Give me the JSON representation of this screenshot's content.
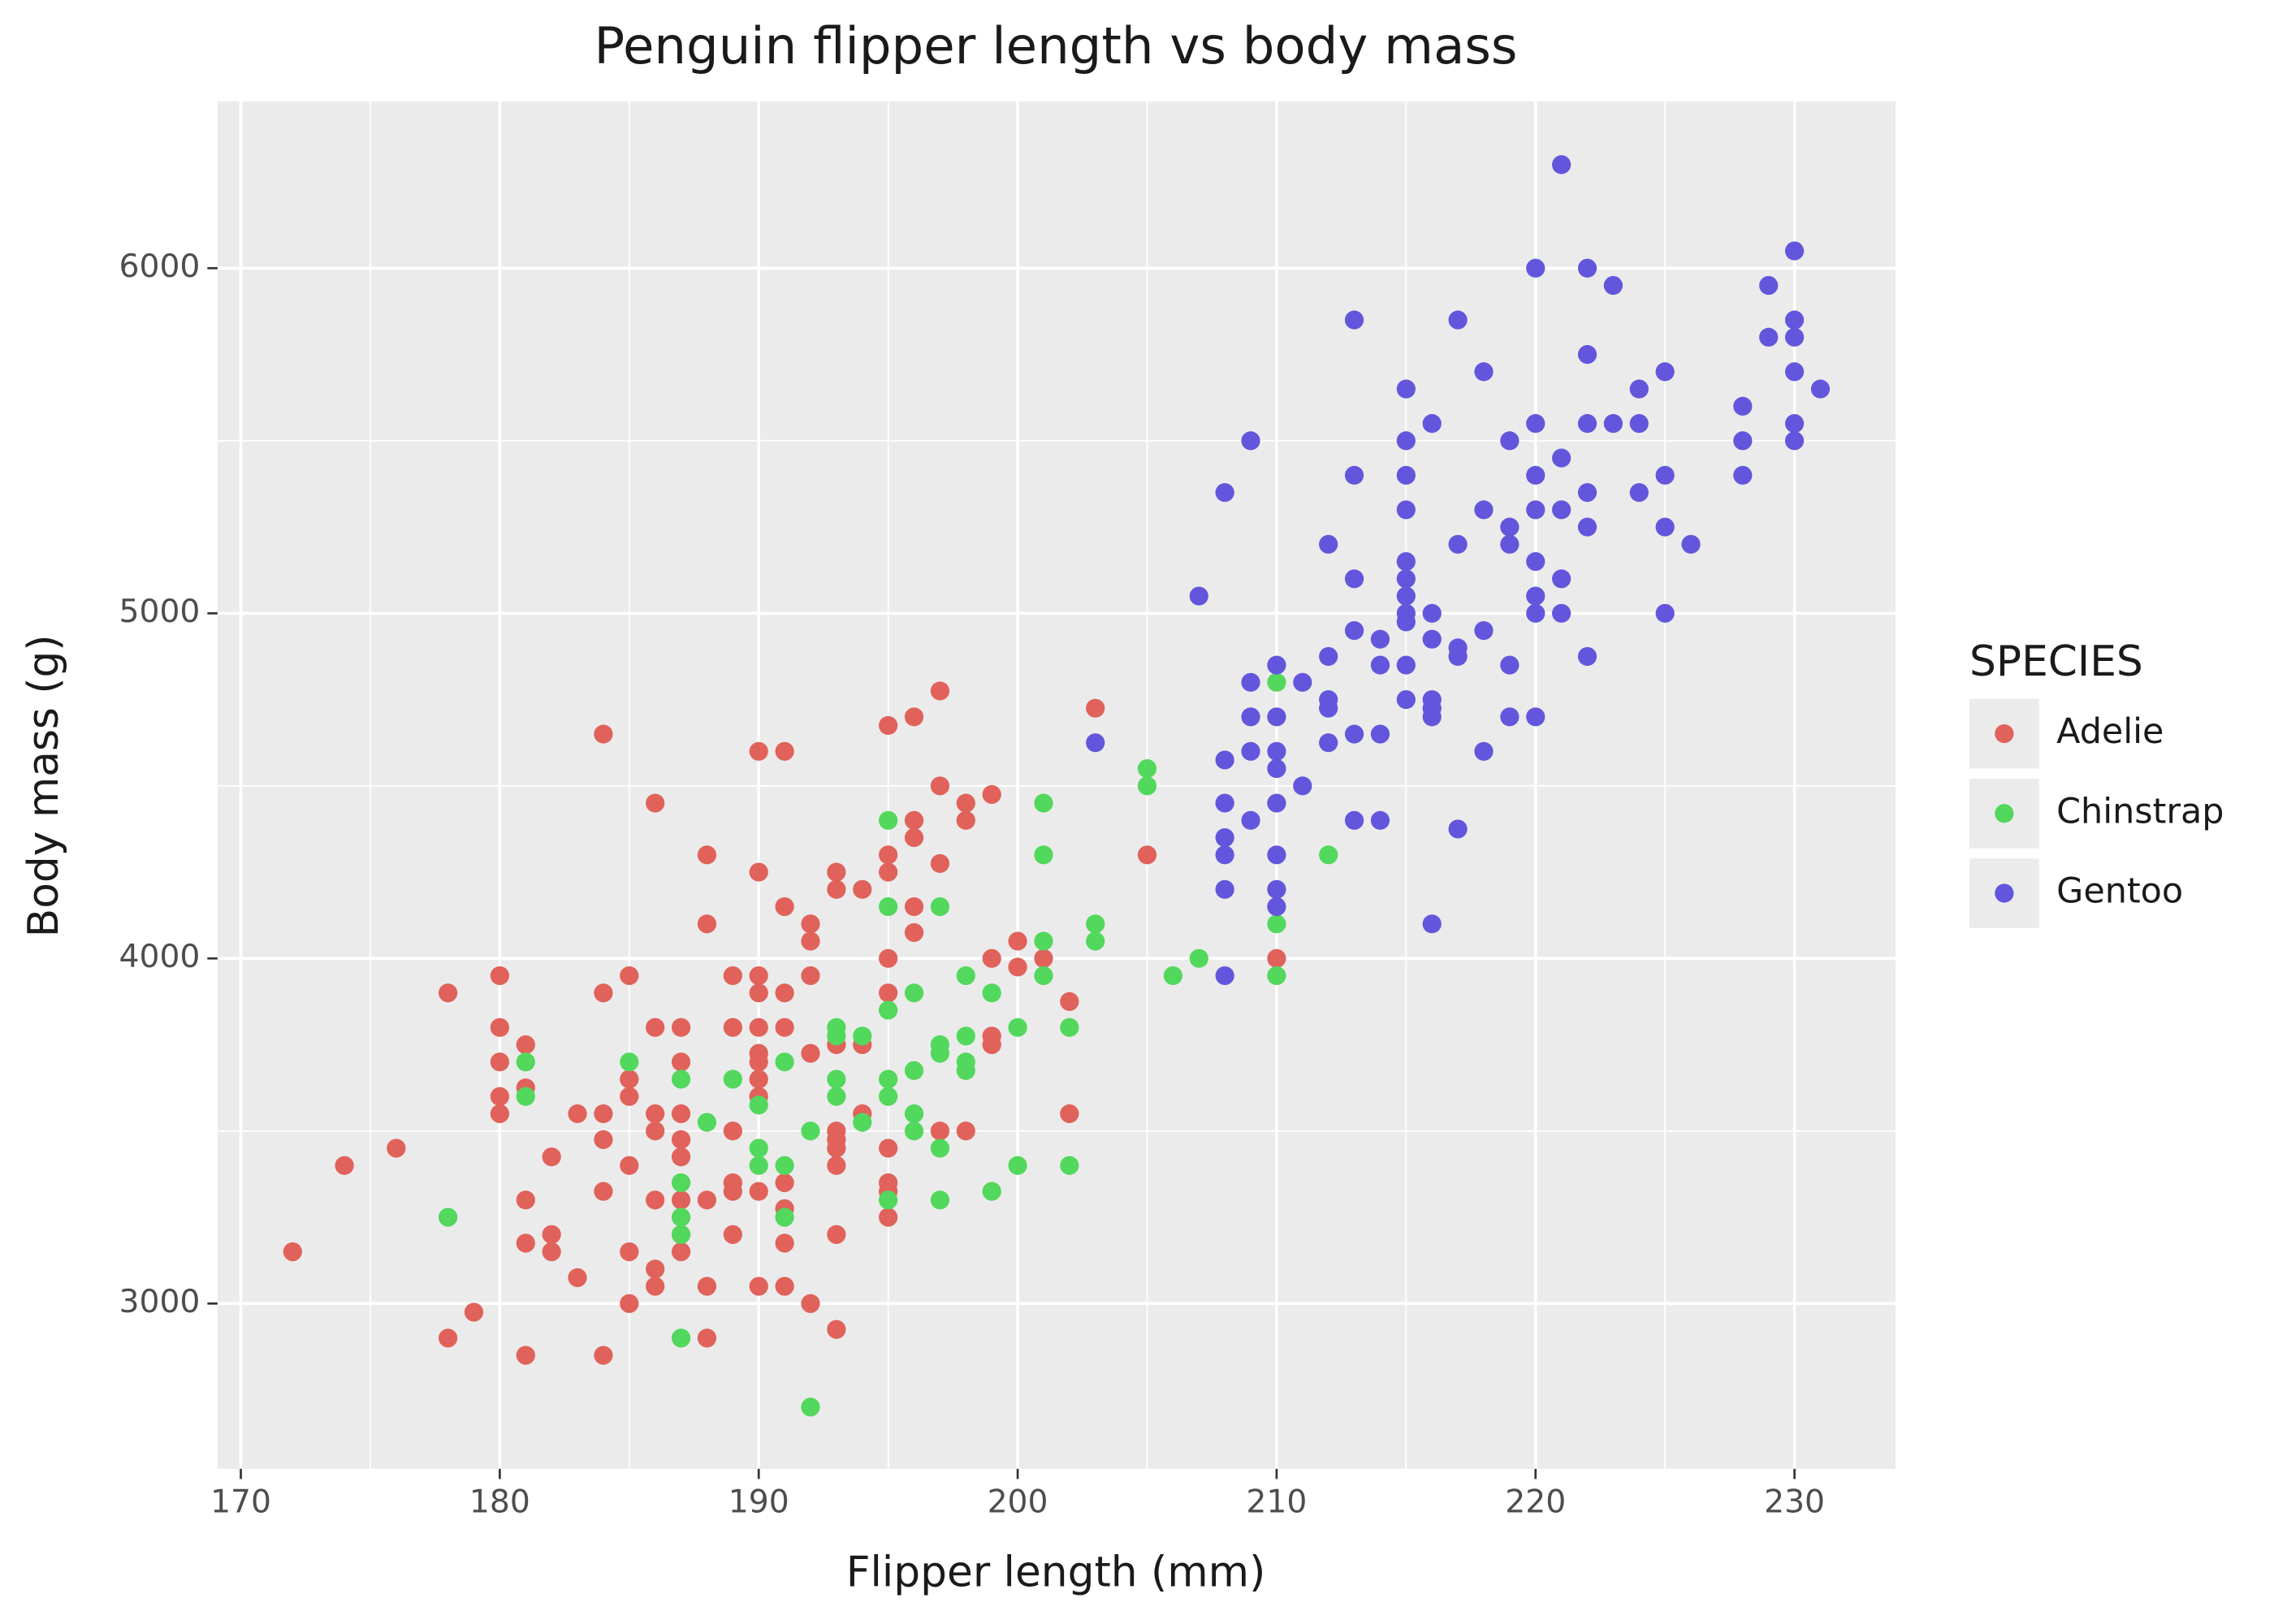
{
  "chart_data": {
    "type": "scatter",
    "title": "Penguin flipper length vs body mass",
    "x_label": "Flipper length (mm)",
    "y_label": "Body mass (g)",
    "legend_title": "SPECIES",
    "legend_position": "right",
    "grid": true,
    "xlim": [
      169.1,
      233.9
    ],
    "ylim": [
      2521,
      6483
    ],
    "xticks": [
      170,
      180,
      190,
      200,
      210,
      220,
      230
    ],
    "yticks": [
      3000,
      4000,
      5000,
      6000
    ],
    "series": [
      {
        "name": "Adelie",
        "color": "#e0625a",
        "x": [
          172,
          174,
          176,
          178,
          178,
          179,
          180,
          180,
          180,
          180,
          180,
          181,
          181,
          181,
          181,
          181,
          182,
          182,
          182,
          183,
          183,
          184,
          184,
          184,
          184,
          184,
          184,
          185,
          185,
          185,
          185,
          185,
          185,
          186,
          186,
          186,
          186,
          186,
          186,
          186,
          187,
          187,
          187,
          187,
          187,
          187,
          187,
          187,
          188,
          188,
          188,
          188,
          188,
          189,
          189,
          189,
          189,
          189,
          189,
          190,
          190,
          190,
          190,
          190,
          190,
          190,
          190,
          190,
          190,
          190,
          191,
          191,
          191,
          191,
          191,
          191,
          191,
          191,
          192,
          192,
          192,
          192,
          192,
          193,
          193,
          193,
          193,
          193,
          193,
          193,
          193,
          193,
          194,
          194,
          194,
          195,
          195,
          195,
          195,
          195,
          195,
          195,
          195,
          195,
          196,
          196,
          196,
          196,
          196,
          197,
          197,
          197,
          197,
          198,
          198,
          198,
          199,
          199,
          199,
          199,
          200,
          200,
          201,
          202,
          202,
          203,
          205,
          210
        ],
        "values": [
          3150,
          3400,
          3450,
          3900,
          2900,
          2975,
          3950,
          3800,
          3700,
          3600,
          3550,
          3750,
          3625,
          3300,
          3175,
          2850,
          3425,
          3200,
          3150,
          3550,
          3075,
          4650,
          3900,
          3550,
          3475,
          3325,
          2850,
          3950,
          3650,
          3600,
          3400,
          3150,
          3000,
          4450,
          3800,
          3550,
          3500,
          3300,
          3100,
          3050,
          3800,
          3700,
          3550,
          3475,
          3425,
          3300,
          3200,
          3150,
          4300,
          4100,
          3300,
          3050,
          2900,
          3950,
          3800,
          3500,
          3350,
          3325,
          3200,
          4600,
          4250,
          3950,
          3900,
          3800,
          3725,
          3700,
          3650,
          3600,
          3325,
          3050,
          4600,
          4150,
          3900,
          3800,
          3350,
          3275,
          3175,
          3050,
          4100,
          4050,
          3950,
          3725,
          3000,
          4250,
          4200,
          3750,
          3500,
          3475,
          3450,
          3400,
          3200,
          2925,
          4200,
          3750,
          3550,
          4675,
          4300,
          4250,
          4000,
          3900,
          3450,
          3350,
          3325,
          3250,
          4700,
          4400,
          4350,
          4150,
          4075,
          4775,
          4500,
          4275,
          3500,
          4450,
          4400,
          3500,
          4475,
          4000,
          3775,
          3750,
          4050,
          3975,
          4000,
          3875,
          3550,
          4725,
          4300,
          4000
        ]
      },
      {
        "name": "Chinstrap",
        "color": "#52d85c",
        "x": [
          178,
          181,
          181,
          185,
          187,
          187,
          187,
          187,
          187,
          188,
          189,
          190,
          190,
          190,
          191,
          191,
          191,
          192,
          192,
          193,
          193,
          193,
          193,
          194,
          194,
          195,
          195,
          195,
          195,
          195,
          195,
          196,
          196,
          196,
          196,
          197,
          197,
          197,
          197,
          197,
          198,
          198,
          198,
          198,
          199,
          199,
          200,
          200,
          201,
          201,
          201,
          201,
          202,
          202,
          203,
          203,
          205,
          205,
          206,
          207,
          210,
          210,
          210,
          212
        ],
        "values": [
          3250,
          3700,
          3600,
          3700,
          3650,
          3350,
          3250,
          3200,
          2900,
          3525,
          3650,
          3575,
          3450,
          3400,
          3700,
          3400,
          3250,
          3500,
          2700,
          3800,
          3775,
          3650,
          3600,
          3775,
          3525,
          4400,
          4150,
          3850,
          3650,
          3600,
          3300,
          3900,
          3675,
          3550,
          3500,
          4150,
          3750,
          3725,
          3450,
          3300,
          3950,
          3775,
          3700,
          3675,
          3900,
          3325,
          3800,
          3400,
          4450,
          4300,
          4050,
          3950,
          3800,
          3400,
          4100,
          4050,
          4550,
          4500,
          3950,
          4000,
          4800,
          4100,
          3950,
          4300
        ]
      },
      {
        "name": "Gentoo",
        "color": "#6356dc",
        "x": [
          203,
          207,
          208,
          208,
          208,
          208,
          208,
          208,
          208,
          209,
          209,
          209,
          209,
          209,
          210,
          210,
          210,
          210,
          210,
          210,
          210,
          210,
          211,
          211,
          212,
          212,
          212,
          212,
          212,
          213,
          213,
          213,
          213,
          213,
          213,
          214,
          214,
          214,
          214,
          215,
          215,
          215,
          215,
          215,
          215,
          215,
          215,
          215,
          215,
          215,
          216,
          216,
          216,
          216,
          216,
          216,
          216,
          217,
          217,
          217,
          217,
          217,
          218,
          218,
          218,
          218,
          219,
          219,
          219,
          219,
          219,
          220,
          220,
          220,
          220,
          220,
          220,
          220,
          220,
          221,
          221,
          221,
          221,
          221,
          222,
          222,
          222,
          222,
          222,
          222,
          223,
          223,
          224,
          224,
          224,
          225,
          225,
          225,
          225,
          226,
          228,
          228,
          228,
          229,
          229,
          230,
          230,
          230,
          230,
          230,
          230,
          231
        ],
        "values": [
          4625,
          5050,
          5350,
          4575,
          4450,
          4350,
          4300,
          4200,
          3950,
          5500,
          4800,
          4700,
          4600,
          4400,
          4850,
          4700,
          4600,
          4550,
          4450,
          4300,
          4200,
          4150,
          4800,
          4500,
          5200,
          4875,
          4750,
          4725,
          4625,
          5850,
          5400,
          5100,
          4950,
          4650,
          4400,
          4925,
          4850,
          4650,
          4400,
          5650,
          5500,
          5400,
          5300,
          5150,
          5100,
          5050,
          5000,
          4975,
          4850,
          4750,
          5550,
          5000,
          4925,
          4750,
          4725,
          4700,
          4100,
          5850,
          5200,
          4900,
          4875,
          4375,
          5700,
          5300,
          4950,
          4600,
          5500,
          5250,
          5200,
          4850,
          4700,
          6000,
          5550,
          5400,
          5300,
          5150,
          5050,
          5000,
          4700,
          6300,
          5450,
          5300,
          5100,
          5000,
          6000,
          5750,
          5550,
          5350,
          5250,
          4875,
          5950,
          5550,
          5650,
          5550,
          5350,
          5700,
          5400,
          5250,
          5000,
          5200,
          5600,
          5500,
          5400,
          5950,
          5800,
          6050,
          5850,
          5800,
          5700,
          5550,
          5500,
          5650
        ]
      }
    ]
  }
}
